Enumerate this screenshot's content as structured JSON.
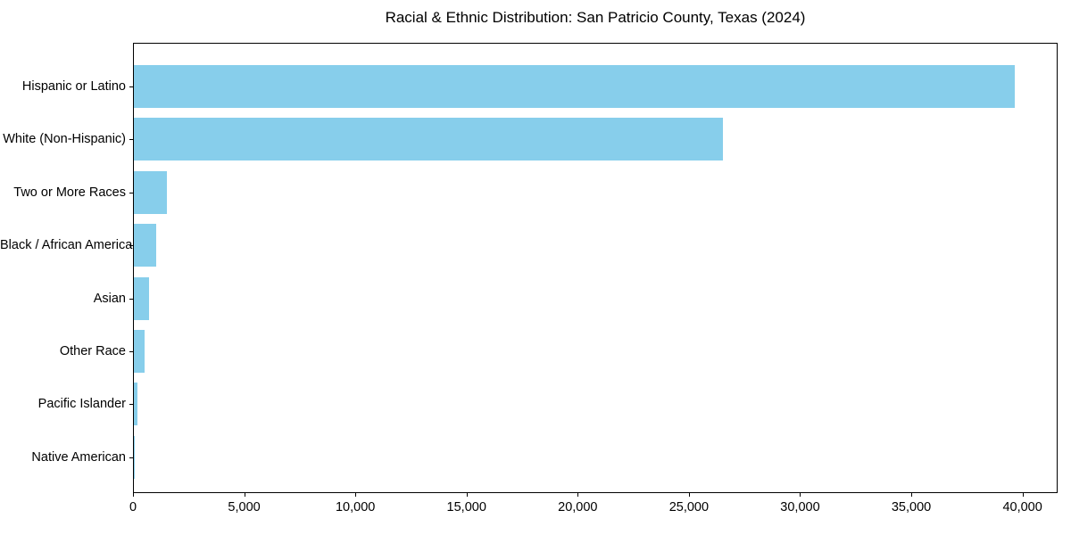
{
  "chart_data": {
    "type": "bar",
    "orientation": "horizontal",
    "title": "Racial & Ethnic Distribution: San Patricio County, Texas (2024)",
    "categories": [
      "Hispanic or Latino",
      "White (Non-Hispanic)",
      "Two or More Races",
      "Black / African American",
      "Asian",
      "Other Race",
      "Pacific Islander",
      "Native American"
    ],
    "values": [
      39600,
      26500,
      1500,
      1000,
      700,
      480,
      160,
      40
    ],
    "xlabel": "",
    "ylabel": "",
    "xlim": [
      0,
      41580
    ],
    "x_ticks": [
      0,
      5000,
      10000,
      15000,
      20000,
      25000,
      30000,
      35000,
      40000
    ],
    "x_tick_labels": [
      "0",
      "5,000",
      "10,000",
      "15,000",
      "20,000",
      "25,000",
      "30,000",
      "35,000",
      "40,000"
    ],
    "grid": false,
    "legend": null,
    "colors": {
      "bar": "#87CEEB",
      "text": "#000000",
      "spine": "#000000",
      "background": "#ffffff"
    }
  }
}
